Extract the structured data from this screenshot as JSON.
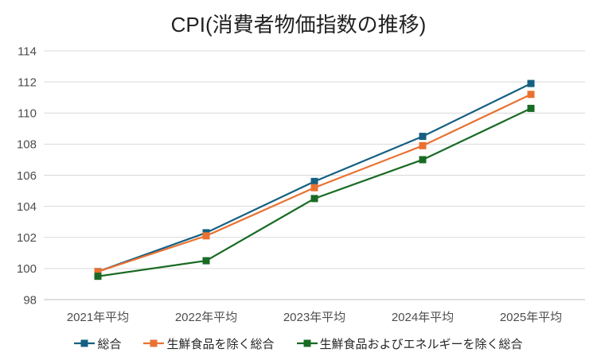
{
  "title": "CPI(消費者物価指数の推移)",
  "chart_data": {
    "type": "line",
    "title": "CPI(消費者物価指数の推移)",
    "categories": [
      "2021年平均",
      "2022年平均",
      "2023年平均",
      "2024年平均",
      "2025年平均"
    ],
    "series": [
      {
        "name": "総合",
        "color": "#156082",
        "values": [
          99.8,
          102.3,
          105.6,
          108.5,
          111.9
        ]
      },
      {
        "name": "生鮮食品を除く総合",
        "color": "#E97132",
        "values": [
          99.8,
          102.1,
          105.2,
          107.9,
          111.2
        ]
      },
      {
        "name": "生鮮食品およびエネルギーを除く総合",
        "color": "#196B24",
        "values": [
          99.5,
          100.5,
          104.5,
          107.0,
          110.3
        ]
      }
    ],
    "xlabel": "",
    "ylabel": "",
    "ylim": [
      98,
      114
    ],
    "ytick_step": 2,
    "yticks": [
      98,
      100,
      102,
      104,
      106,
      108,
      110,
      112,
      114
    ],
    "grid": true,
    "legend_position": "bottom",
    "marker": "square",
    "gridline_color": "#D9D9D9",
    "axis_line_color": "#BFBFBF",
    "tick_label_color": "#4d4d4d"
  }
}
